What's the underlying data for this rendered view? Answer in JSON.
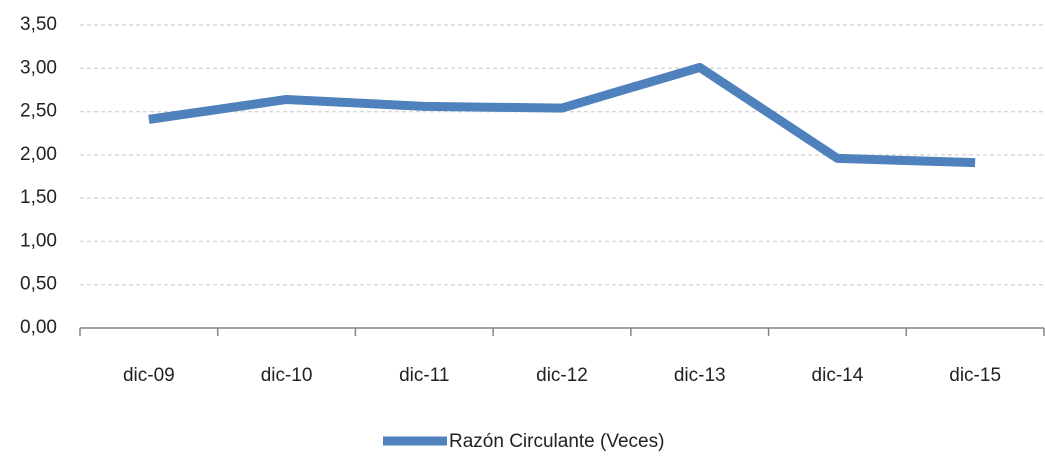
{
  "chart_data": {
    "type": "line",
    "categories": [
      "dic-09",
      "dic-10",
      "dic-11",
      "dic-12",
      "dic-13",
      "dic-14",
      "dic-15"
    ],
    "series": [
      {
        "name": "Razón Circulante (Veces)",
        "color": "#4f81bd",
        "values": [
          2.41,
          2.64,
          2.56,
          2.54,
          3.01,
          1.96,
          1.91
        ]
      }
    ],
    "ylim": [
      0,
      3.5
    ],
    "yticks": [
      {
        "value": 0,
        "label": "0,00"
      },
      {
        "value": 0.5,
        "label": "0,50"
      },
      {
        "value": 1,
        "label": "1,00"
      },
      {
        "value": 1.5,
        "label": "1,50"
      },
      {
        "value": 2,
        "label": "2,00"
      },
      {
        "value": 2.5,
        "label": "2,50"
      },
      {
        "value": 3,
        "label": "3,00"
      },
      {
        "value": 3.5,
        "label": "3,50"
      }
    ],
    "grid": true,
    "legend": "bottom"
  }
}
